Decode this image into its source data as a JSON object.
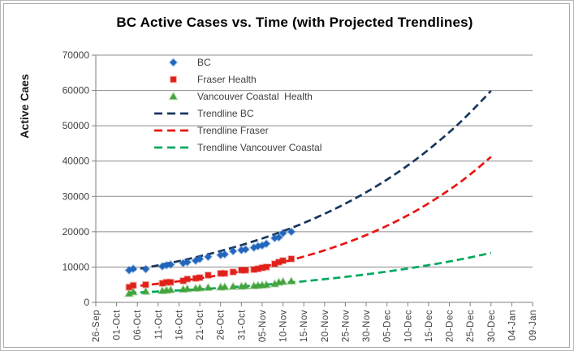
{
  "chart_data": {
    "type": "scatter",
    "title": "BC Active Cases vs. Time (with Projected Trendlines)",
    "xlabel": "",
    "ylabel": "Active Caes",
    "ylim": [
      0,
      70000
    ],
    "y_tick_interval": 10000,
    "y_tick_labels": [
      "0",
      "10000",
      "20000",
      "30000",
      "40000",
      "50000",
      "60000",
      "70000"
    ],
    "x_tick_labels": [
      "26-Sep",
      "01-Oct",
      "06-Oct",
      "11-Oct",
      "16-Oct",
      "21-Oct",
      "26-Oct",
      "31-Oct",
      "05-Nov",
      "10-Nov",
      "15-Nov",
      "20-Nov",
      "25-Nov",
      "30-Nov",
      "05-Dec",
      "10-Dec",
      "15-Dec",
      "20-Dec",
      "25-Dec",
      "30-Dec",
      "04-Jan",
      "09-Jan"
    ],
    "x_tick_spacing_days": 5,
    "x_axis_note": "series point x values are day offsets from 26-Sep",
    "grid": true,
    "legend_position": "inside top-left",
    "series": [
      {
        "name": "BC",
        "marker": "diamond",
        "color": "#2166BE",
        "points": [
          [
            8,
            9100
          ],
          [
            9,
            9500
          ],
          [
            12,
            9400
          ],
          [
            16,
            10200
          ],
          [
            17,
            10500
          ],
          [
            18,
            10700
          ],
          [
            21,
            11100
          ],
          [
            22,
            11400
          ],
          [
            24,
            11800
          ],
          [
            25,
            12300
          ],
          [
            27,
            12900
          ],
          [
            30,
            13400
          ],
          [
            31,
            13600
          ],
          [
            33,
            14500
          ],
          [
            35,
            14800
          ],
          [
            36,
            15000
          ],
          [
            38,
            15500
          ],
          [
            39,
            15900
          ],
          [
            40,
            16100
          ],
          [
            41,
            16600
          ],
          [
            43,
            18200
          ],
          [
            44,
            18400
          ],
          [
            45,
            19600
          ],
          [
            47,
            20000
          ]
        ]
      },
      {
        "name": "Fraser Health",
        "marker": "square",
        "color": "#E0211A",
        "points": [
          [
            8,
            4300
          ],
          [
            9,
            4800
          ],
          [
            12,
            5000
          ],
          [
            16,
            5400
          ],
          [
            17,
            5700
          ],
          [
            18,
            5700
          ],
          [
            21,
            6100
          ],
          [
            22,
            6600
          ],
          [
            24,
            6800
          ],
          [
            25,
            7000
          ],
          [
            27,
            7700
          ],
          [
            30,
            8200
          ],
          [
            31,
            8200
          ],
          [
            33,
            8600
          ],
          [
            35,
            9100
          ],
          [
            36,
            9100
          ],
          [
            38,
            9300
          ],
          [
            39,
            9500
          ],
          [
            40,
            9800
          ],
          [
            41,
            10000
          ],
          [
            43,
            10900
          ],
          [
            44,
            11400
          ],
          [
            45,
            11800
          ],
          [
            47,
            12300
          ]
        ]
      },
      {
        "name": "Vancouver Coastal  Health",
        "marker": "triangle",
        "color": "#46A33C",
        "points": [
          [
            8,
            2500
          ],
          [
            9,
            2950
          ],
          [
            12,
            3100
          ],
          [
            16,
            3300
          ],
          [
            17,
            3450
          ],
          [
            18,
            3550
          ],
          [
            21,
            3700
          ],
          [
            22,
            3860
          ],
          [
            24,
            4000
          ],
          [
            25,
            4090
          ],
          [
            27,
            4200
          ],
          [
            30,
            4320
          ],
          [
            31,
            4400
          ],
          [
            33,
            4500
          ],
          [
            35,
            4550
          ],
          [
            36,
            4650
          ],
          [
            38,
            4700
          ],
          [
            39,
            4800
          ],
          [
            40,
            4900
          ],
          [
            41,
            5000
          ],
          [
            43,
            5230
          ],
          [
            44,
            5680
          ],
          [
            45,
            5900
          ],
          [
            47,
            6000
          ]
        ]
      }
    ],
    "trendlines": [
      {
        "name": "Trendline BC",
        "color": "#17375D",
        "points": [
          [
            8,
            9000
          ],
          [
            15,
            10490
          ],
          [
            22,
            12220
          ],
          [
            29,
            14230
          ],
          [
            36,
            16570
          ],
          [
            43,
            19300
          ],
          [
            50,
            22480
          ],
          [
            57,
            26190
          ],
          [
            64,
            30510
          ],
          [
            71,
            35530
          ],
          [
            78,
            41400
          ],
          [
            85,
            48200
          ],
          [
            90,
            53740
          ],
          [
            95,
            59900
          ]
        ]
      },
      {
        "name": "Trendline Fraser",
        "color": "#E8150E",
        "points": [
          [
            8,
            4400
          ],
          [
            15,
            5270
          ],
          [
            22,
            6310
          ],
          [
            29,
            7550
          ],
          [
            36,
            9040
          ],
          [
            43,
            10820
          ],
          [
            50,
            12960
          ],
          [
            57,
            15510
          ],
          [
            64,
            18570
          ],
          [
            71,
            22230
          ],
          [
            78,
            26620
          ],
          [
            85,
            31870
          ],
          [
            90,
            36220
          ],
          [
            95,
            41200
          ]
        ]
      },
      {
        "name": "Trendline Vancouver Coastal",
        "color": "#00A85D",
        "points": [
          [
            8,
            2700
          ],
          [
            15,
            3080
          ],
          [
            22,
            3520
          ],
          [
            29,
            4020
          ],
          [
            36,
            4580
          ],
          [
            43,
            5230
          ],
          [
            50,
            5970
          ],
          [
            57,
            6820
          ],
          [
            64,
            7780
          ],
          [
            71,
            8880
          ],
          [
            78,
            10140
          ],
          [
            85,
            11570
          ],
          [
            90,
            12720
          ],
          [
            95,
            14000
          ]
        ]
      }
    ],
    "style_colors": {
      "gridline": "#8C8C8C",
      "axis": "#7F7F7F",
      "tick_text": "#404040",
      "title_text": "#000000"
    }
  }
}
